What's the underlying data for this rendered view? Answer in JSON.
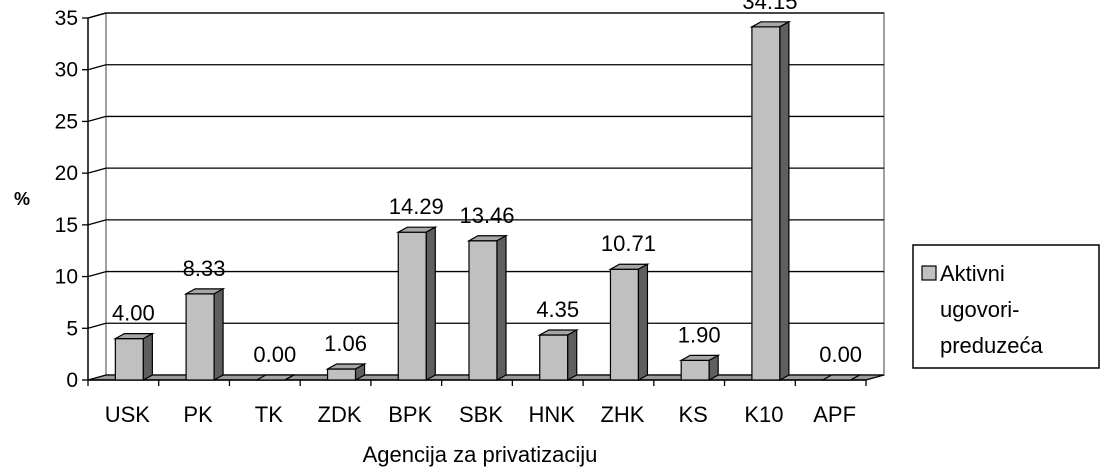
{
  "chart_data": {
    "type": "bar",
    "categories": [
      "USK",
      "PK",
      "TK",
      "ZDK",
      "BPK",
      "SBK",
      "HNK",
      "ZHK",
      "KS",
      "K10",
      "APF"
    ],
    "series": [
      {
        "name": "Aktivni ugovori-preduzeća",
        "values": [
          4.0,
          8.33,
          0.0,
          1.06,
          14.29,
          13.46,
          4.35,
          10.71,
          1.9,
          34.15,
          0.0
        ],
        "labels": [
          "4.00",
          "8.33",
          "0.00",
          "1.06",
          "14.29",
          "13.46",
          "4.35",
          "10.71",
          "1.90",
          "34.15",
          "0.00"
        ]
      }
    ],
    "legend_lines": [
      "Aktivni",
      "ugovori-",
      "preduzeća"
    ],
    "xlabel": "Agencija za privatizaciju",
    "ylabel": "%",
    "ylim": [
      0,
      35
    ],
    "yticks": [
      0,
      5,
      10,
      15,
      20,
      25,
      30,
      35
    ],
    "grid": true,
    "legend_position": "right",
    "colors": {
      "bar_front": "#c0c0c0",
      "bar_top": "#a6a6a6",
      "bar_side": "#5f5f5f",
      "wall": "#ffffff",
      "floor": "#9a9a9a"
    }
  }
}
